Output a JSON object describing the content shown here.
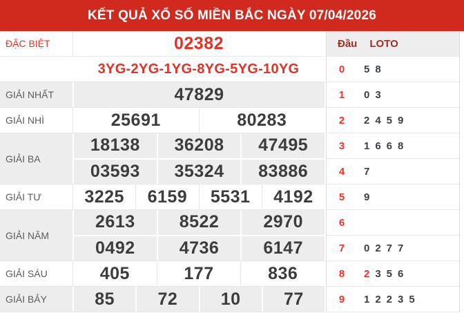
{
  "title": "KẾT QUẢ XỔ SỐ MIỀN BẮC NGÀY 07/04/2026",
  "colors": {
    "header_background": "#cf2a1d",
    "highlight_red": "#e23227",
    "loto_head_red": "#ee3124",
    "loto_header_maroon": "#a52c21",
    "number_dark": "#3c3c3c",
    "row_gray": "#ededed"
  },
  "prizes": {
    "special": {
      "label": "ĐẶC BIỆT",
      "value": "02382"
    },
    "yg_codes": "3YG-2YG-1YG-8YG-5YG-10YG",
    "first": {
      "label": "GIẢI NHẤT",
      "values": [
        "47829"
      ]
    },
    "second": {
      "label": "GIẢI NHÌ",
      "values": [
        "25691",
        "80283"
      ]
    },
    "third": {
      "label": "GIẢI BA",
      "row1": [
        "18138",
        "36208",
        "47495"
      ],
      "row2": [
        "03593",
        "35324",
        "83886"
      ]
    },
    "fourth": {
      "label": "GIẢI TƯ",
      "values": [
        "3225",
        "6159",
        "5531",
        "4192"
      ]
    },
    "fifth": {
      "label": "GIẢI NĂM",
      "row1": [
        "2613",
        "8522",
        "2970"
      ],
      "row2": [
        "0492",
        "4736",
        "6147"
      ]
    },
    "sixth": {
      "label": "GIẢI SÁU",
      "values": [
        "405",
        "177",
        "836"
      ]
    },
    "seventh": {
      "label": "GIẢI BẢY",
      "values": [
        "85",
        "72",
        "10",
        "77"
      ]
    }
  },
  "loto": {
    "head_label": "Đầu",
    "loto_label": "LOTO",
    "rows": [
      {
        "head": "0",
        "hl": "",
        "rest": "58"
      },
      {
        "head": "1",
        "hl": "",
        "rest": "03"
      },
      {
        "head": "2",
        "hl": "",
        "rest": "2459"
      },
      {
        "head": "3",
        "hl": "",
        "rest": "1668"
      },
      {
        "head": "4",
        "hl": "",
        "rest": "7"
      },
      {
        "head": "5",
        "hl": "",
        "rest": "9"
      },
      {
        "head": "6",
        "hl": "",
        "rest": ""
      },
      {
        "head": "7",
        "hl": "",
        "rest": "0277"
      },
      {
        "head": "8",
        "hl": "2",
        "rest": "356"
      },
      {
        "head": "9",
        "hl": "",
        "rest": "12235"
      }
    ]
  }
}
